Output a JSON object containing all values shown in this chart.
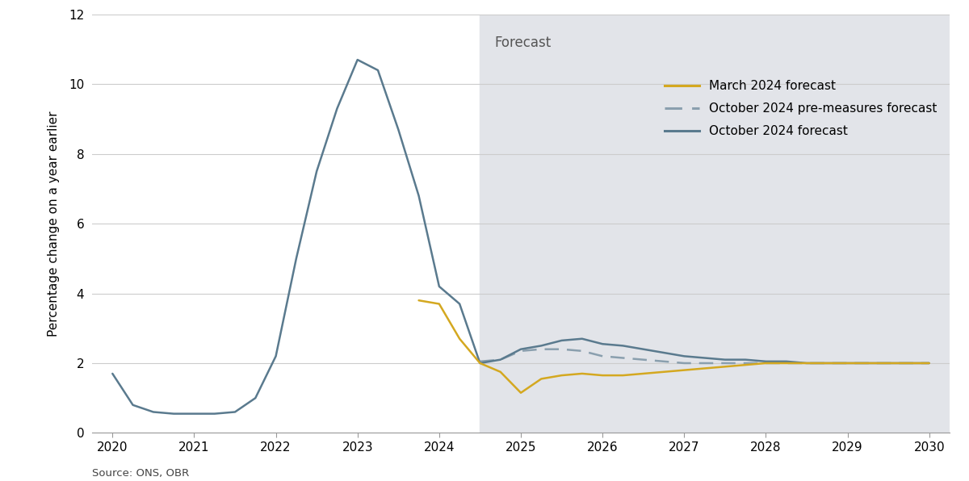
{
  "title": "",
  "ylabel": "Percentage change on a year earlier",
  "source": "Source: ONS, OBR",
  "forecast_label": "Forecast",
  "forecast_start": 2024.5,
  "xlim": [
    2019.75,
    2030.25
  ],
  "ylim": [
    0,
    12
  ],
  "yticks": [
    0,
    2,
    4,
    6,
    8,
    10,
    12
  ],
  "xticks": [
    2020,
    2021,
    2022,
    2023,
    2024,
    2025,
    2026,
    2027,
    2028,
    2029,
    2030
  ],
  "background_color": "#ffffff",
  "forecast_bg_color": "#e2e4e9",
  "grid_color": "#cccccc",
  "oct2024_color": "#5a7a8e",
  "oct2024_pre_color": "#8a9fae",
  "march2024_color": "#d4a820",
  "oct2024_x": [
    2020.0,
    2020.25,
    2020.5,
    2020.75,
    2021.0,
    2021.25,
    2021.5,
    2021.75,
    2022.0,
    2022.25,
    2022.5,
    2022.75,
    2023.0,
    2023.25,
    2023.5,
    2023.75,
    2024.0,
    2024.25,
    2024.5,
    2024.75,
    2025.0,
    2025.25,
    2025.5,
    2025.75,
    2026.0,
    2026.25,
    2026.5,
    2026.75,
    2027.0,
    2027.25,
    2027.5,
    2027.75,
    2028.0,
    2028.25,
    2028.5,
    2028.75,
    2029.0,
    2029.25,
    2029.5,
    2029.75,
    2030.0
  ],
  "oct2024_y": [
    1.7,
    0.8,
    0.6,
    0.55,
    0.55,
    0.55,
    0.6,
    1.0,
    2.2,
    5.0,
    7.5,
    9.3,
    10.7,
    10.4,
    8.7,
    6.8,
    4.2,
    3.7,
    2.0,
    2.1,
    2.4,
    2.5,
    2.65,
    2.7,
    2.55,
    2.5,
    2.4,
    2.3,
    2.2,
    2.15,
    2.1,
    2.1,
    2.05,
    2.05,
    2.0,
    2.0,
    2.0,
    2.0,
    2.0,
    2.0,
    2.0
  ],
  "oct2024_pre_x": [
    2024.5,
    2024.75,
    2025.0,
    2025.25,
    2025.5,
    2025.75,
    2026.0,
    2026.25,
    2026.5,
    2026.75,
    2027.0,
    2027.25,
    2027.5,
    2027.75,
    2028.0,
    2028.25,
    2028.5,
    2028.75,
    2029.0,
    2029.25,
    2029.5,
    2029.75,
    2030.0
  ],
  "oct2024_pre_y": [
    2.05,
    2.1,
    2.35,
    2.4,
    2.4,
    2.35,
    2.2,
    2.15,
    2.1,
    2.05,
    2.0,
    2.0,
    2.0,
    2.0,
    2.0,
    2.0,
    2.0,
    2.0,
    2.0,
    2.0,
    2.0,
    2.0,
    2.0
  ],
  "march2024_x": [
    2023.75,
    2024.0,
    2024.25,
    2024.5,
    2024.75,
    2025.0,
    2025.25,
    2025.5,
    2025.75,
    2026.0,
    2026.25,
    2026.5,
    2026.75,
    2027.0,
    2027.25,
    2027.5,
    2027.75,
    2028.0,
    2028.25,
    2028.5,
    2028.75,
    2029.0,
    2029.25,
    2029.5,
    2029.75,
    2030.0
  ],
  "march2024_y": [
    3.8,
    3.7,
    2.7,
    2.0,
    1.75,
    1.15,
    1.55,
    1.65,
    1.7,
    1.65,
    1.65,
    1.7,
    1.75,
    1.8,
    1.85,
    1.9,
    1.95,
    2.0,
    2.0,
    2.0,
    2.0,
    2.0,
    2.0,
    2.0,
    2.0,
    2.0
  ],
  "legend_entries": [
    {
      "label": "March 2024 forecast",
      "color": "#d4a820",
      "linestyle": "solid"
    },
    {
      "label": "October 2024 pre-measures forecast",
      "color": "#8a9fae",
      "linestyle": "dashed"
    },
    {
      "label": "October 2024 forecast",
      "color": "#5a7a8e",
      "linestyle": "solid"
    }
  ]
}
